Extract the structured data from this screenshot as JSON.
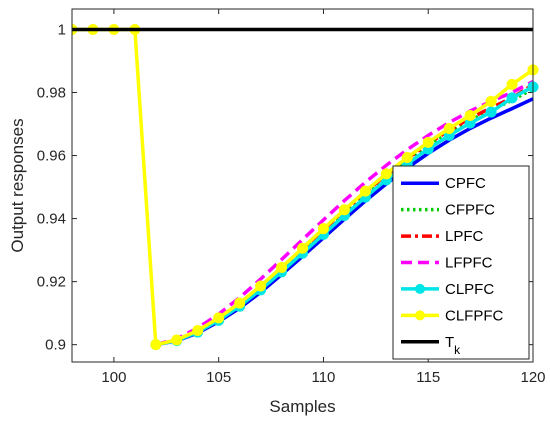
{
  "chart_data": {
    "type": "line",
    "xlabel": "Samples",
    "ylabel": "Output responses",
    "xlim": [
      98,
      120
    ],
    "ylim": [
      0.8945,
      1.0065
    ],
    "x_ticks": [
      100,
      105,
      110,
      115,
      120
    ],
    "y_ticks": [
      0.9,
      0.92,
      0.94,
      0.96,
      0.98,
      1
    ],
    "y_tick_labels": [
      "0.9",
      "0.92",
      "0.94",
      "0.96",
      "0.98",
      "1"
    ],
    "grid": false,
    "legend_position": "lower-right",
    "series": [
      {
        "name": "CPFC",
        "color": "#0000ff",
        "dash": "solid",
        "marker": "none",
        "x": [
          102,
          103,
          104,
          105,
          106,
          107,
          108,
          109,
          110,
          111,
          112,
          113,
          114,
          115,
          116,
          117,
          118,
          119,
          120
        ],
        "y": [
          0.9,
          0.9012,
          0.9037,
          0.9073,
          0.9116,
          0.9166,
          0.9222,
          0.928,
          0.9339,
          0.9398,
          0.9456,
          0.951,
          0.9561,
          0.9607,
          0.9649,
          0.9686,
          0.9719,
          0.9749,
          0.978
        ]
      },
      {
        "name": "CFPFC",
        "color": "#00cc00",
        "dash": "dotted",
        "marker": "none",
        "x": [
          102,
          103,
          104,
          105,
          106,
          107,
          108,
          109,
          110,
          111,
          112,
          113,
          114,
          115,
          116,
          117,
          118,
          119,
          120
        ],
        "y": [
          0.9,
          0.9014,
          0.9042,
          0.908,
          0.9126,
          0.918,
          0.9237,
          0.9297,
          0.9358,
          0.9418,
          0.9477,
          0.9532,
          0.9583,
          0.9631,
          0.9673,
          0.9711,
          0.9745,
          0.9775,
          0.9812
        ]
      },
      {
        "name": "LPFC",
        "color": "#ff0000",
        "dash": "dashdot",
        "marker": "none",
        "x": [
          102,
          103,
          104,
          105,
          106,
          107,
          108,
          109,
          110,
          111,
          112,
          113,
          114,
          115,
          116,
          117,
          118,
          119,
          120
        ],
        "y": [
          0.9,
          0.9015,
          0.9044,
          0.9083,
          0.913,
          0.9184,
          0.9243,
          0.9304,
          0.9365,
          0.9425,
          0.9484,
          0.9539,
          0.959,
          0.9638,
          0.968,
          0.9718,
          0.9752,
          0.9783,
          0.9825
        ]
      },
      {
        "name": "LFPFC",
        "color": "#ff00ff",
        "dash": "dashed",
        "marker": "none",
        "x": [
          102,
          103,
          104,
          105,
          106,
          107,
          108,
          109,
          110,
          111,
          112,
          113,
          114,
          115,
          116,
          117,
          118,
          119,
          120
        ],
        "y": [
          0.9,
          0.9019,
          0.9053,
          0.9097,
          0.9149,
          0.9208,
          0.927,
          0.9333,
          0.9396,
          0.9457,
          0.9515,
          0.9569,
          0.9619,
          0.9664,
          0.9705,
          0.9741,
          0.9772,
          0.98,
          0.9835
        ]
      },
      {
        "name": "CLPFC",
        "color": "#00e5e5",
        "dash": "solid",
        "marker": "circle",
        "x": [
          102,
          103,
          104,
          105,
          106,
          107,
          108,
          109,
          110,
          111,
          112,
          113,
          114,
          115,
          116,
          117,
          118,
          119,
          120
        ],
        "y": [
          0.9,
          0.9013,
          0.904,
          0.9077,
          0.9122,
          0.9174,
          0.9231,
          0.929,
          0.935,
          0.941,
          0.9468,
          0.9523,
          0.9574,
          0.9621,
          0.9664,
          0.9703,
          0.9738,
          0.9783,
          0.9818
        ]
      },
      {
        "name": "CLFPFC",
        "color": "#ffff00",
        "dash": "solid",
        "marker": "circle",
        "x": [
          98,
          99,
          100,
          101,
          102,
          103,
          104,
          105,
          106,
          107,
          108,
          109,
          110,
          111,
          112,
          113,
          114,
          115,
          116,
          117,
          118,
          119,
          120
        ],
        "y": [
          1.0,
          1.0,
          1.0,
          1.0,
          0.9,
          0.9015,
          0.9045,
          0.9085,
          0.9132,
          0.9186,
          0.9245,
          0.9306,
          0.9368,
          0.9428,
          0.9487,
          0.9542,
          0.9594,
          0.9642,
          0.9686,
          0.9727,
          0.9772,
          0.9826,
          0.9872
        ]
      },
      {
        "name": "T",
        "name_subscript": "k",
        "color": "#000000",
        "dash": "solid",
        "marker": "none",
        "x": [
          98,
          120
        ],
        "y": [
          1.0,
          1.0
        ]
      }
    ]
  }
}
